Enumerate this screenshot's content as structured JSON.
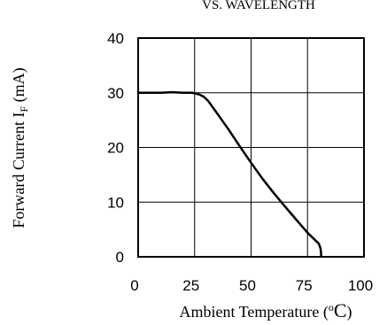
{
  "chart_data": {
    "type": "line",
    "title": "VS. WAVELENGTH",
    "xlabel": "Ambient Temperature (",
    "xlabel_sup": "o",
    "xlabel_unit": "C",
    "xlabel_close": ")",
    "ylabel": "Forward Current I",
    "ylabel_sub": "F",
    "ylabel_unit": " (mA)",
    "xlim": [
      0,
      100
    ],
    "ylim": [
      0,
      40
    ],
    "grid": true,
    "x_ticks": [
      "0",
      "25",
      "50",
      "75",
      "100"
    ],
    "y_ticks": [
      "0",
      "10",
      "20",
      "30",
      "40"
    ],
    "series": [
      {
        "x": [
          0,
          5,
          10,
          15,
          20,
          24,
          27,
          29,
          31,
          35,
          40,
          45,
          50,
          55,
          60,
          65,
          70,
          75,
          78,
          80,
          80.8,
          81,
          81
        ],
        "y": [
          30,
          30,
          30,
          30.1,
          30,
          30,
          29.7,
          29.3,
          28.5,
          26.2,
          23.3,
          20.2,
          17.2,
          14.3,
          11.7,
          9.2,
          6.8,
          4.4,
          3.2,
          2.4,
          1.5,
          0.5,
          0
        ]
      }
    ]
  }
}
